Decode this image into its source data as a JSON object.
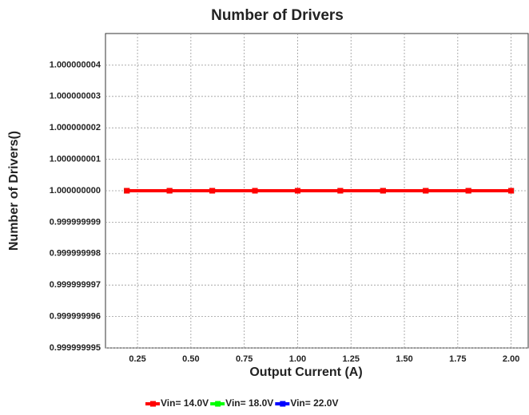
{
  "chart_data": {
    "type": "line",
    "title": "Number of Drivers",
    "x_label": "Output Current (A)",
    "y_label": "Number of Drivers()",
    "x": [
      0.2,
      0.4,
      0.6,
      0.8,
      1.0,
      1.2,
      1.4,
      1.6,
      1.8,
      2.0
    ],
    "series": [
      {
        "name": "Vin= 14.0V",
        "color": "#ff0000",
        "values": [
          1,
          1,
          1,
          1,
          1,
          1,
          1,
          1,
          1,
          1
        ]
      },
      {
        "name": "Vin= 18.0V",
        "color": "#00ff00",
        "values": [
          1,
          1,
          1,
          1,
          1,
          1,
          1,
          1,
          1,
          1
        ]
      },
      {
        "name": "Vin= 22.0V",
        "color": "#0000ff",
        "values": [
          1,
          1,
          1,
          1,
          1,
          1,
          1,
          1,
          1,
          1
        ]
      }
    ],
    "xlim": [
      0.1,
      2.08
    ],
    "xticks": [
      0.25,
      {
        "value": 0.5,
        "label": "0.50"
      },
      0.75,
      {
        "value": 1,
        "label": "1.00"
      },
      1.25,
      {
        "value": 1.5,
        "label": "1.50"
      },
      1.75,
      {
        "value": 2,
        "label": "2.00"
      }
    ],
    "ylim": [
      0.999999995,
      1.000000005
    ],
    "yticks": [
      0.999999995,
      0.999999996,
      0.999999997,
      0.999999998,
      0.999999999,
      {
        "value": 1,
        "label": "1.000000000"
      },
      1.000000001,
      1.000000002,
      1.000000003,
      1.000000004
    ],
    "grid": true
  }
}
